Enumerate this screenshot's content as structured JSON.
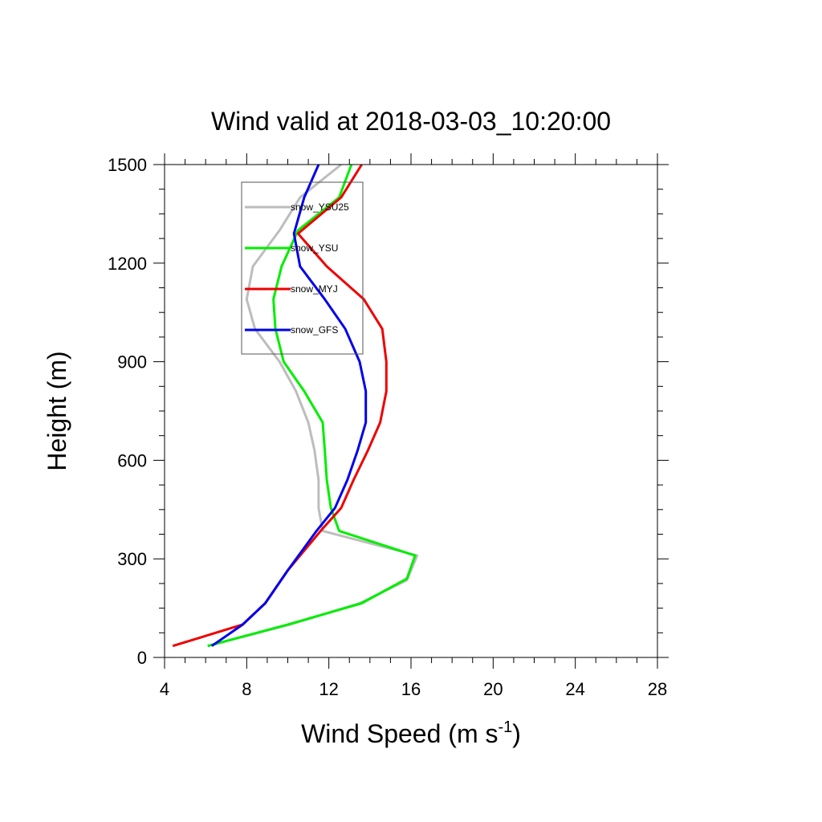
{
  "chart_data": {
    "type": "line",
    "title": "Wind valid at 2018-03-03_10:20:00",
    "xlabel_text": "Wind Speed (m s",
    "xlabel_sup": "-1",
    "xlabel_close": ")",
    "ylabel": "Height (m)",
    "xlim": [
      4,
      28
    ],
    "ylim": [
      0,
      1500
    ],
    "xticks": [
      4,
      8,
      12,
      16,
      20,
      24,
      28
    ],
    "yticks": [
      0,
      300,
      600,
      900,
      1200,
      1500
    ],
    "grid": false,
    "legend_position": "top-left",
    "series": [
      {
        "name": "snow_YSU25",
        "color": "#bdbdbd",
        "points": [
          [
            6.1,
            35
          ],
          [
            10.1,
            100
          ],
          [
            13.5,
            165
          ],
          [
            15.8,
            235
          ],
          [
            16.3,
            310
          ],
          [
            11.7,
            385
          ],
          [
            11.5,
            455
          ],
          [
            11.5,
            540
          ],
          [
            11.3,
            630
          ],
          [
            11.0,
            715
          ],
          [
            10.4,
            810
          ],
          [
            9.6,
            900
          ],
          [
            8.4,
            1000
          ],
          [
            8.0,
            1090
          ],
          [
            8.3,
            1190
          ],
          [
            9.6,
            1300
          ],
          [
            10.6,
            1400
          ],
          [
            12.6,
            1500
          ]
        ]
      },
      {
        "name": "snow_YSU",
        "color": "#00ee00",
        "points": [
          [
            6.1,
            35
          ],
          [
            10.0,
            100
          ],
          [
            13.6,
            165
          ],
          [
            15.8,
            240
          ],
          [
            16.2,
            310
          ],
          [
            12.5,
            385
          ],
          [
            12.1,
            455
          ],
          [
            11.9,
            540
          ],
          [
            11.8,
            630
          ],
          [
            11.7,
            715
          ],
          [
            10.8,
            810
          ],
          [
            9.8,
            900
          ],
          [
            9.4,
            1000
          ],
          [
            9.3,
            1090
          ],
          [
            9.7,
            1190
          ],
          [
            10.5,
            1300
          ],
          [
            12.5,
            1400
          ],
          [
            13.1,
            1500
          ]
        ]
      },
      {
        "name": "snow_MYJ",
        "color": "#ee0000",
        "points": [
          [
            4.4,
            35
          ],
          [
            7.8,
            100
          ],
          [
            8.9,
            165
          ],
          [
            10.0,
            265
          ],
          [
            11.6,
            385
          ],
          [
            12.6,
            455
          ],
          [
            13.2,
            540
          ],
          [
            13.9,
            630
          ],
          [
            14.5,
            715
          ],
          [
            14.8,
            810
          ],
          [
            14.8,
            900
          ],
          [
            14.6,
            1000
          ],
          [
            13.7,
            1090
          ],
          [
            11.9,
            1190
          ],
          [
            10.5,
            1290
          ],
          [
            12.6,
            1400
          ],
          [
            13.6,
            1500
          ]
        ]
      },
      {
        "name": "snow_GFS",
        "color": "#0000ee",
        "points": [
          [
            6.3,
            35
          ],
          [
            7.8,
            100
          ],
          [
            8.9,
            165
          ],
          [
            10.0,
            265
          ],
          [
            11.4,
            385
          ],
          [
            12.3,
            455
          ],
          [
            12.9,
            540
          ],
          [
            13.4,
            630
          ],
          [
            13.8,
            715
          ],
          [
            13.8,
            810
          ],
          [
            13.5,
            900
          ],
          [
            12.8,
            1000
          ],
          [
            11.8,
            1090
          ],
          [
            10.6,
            1190
          ],
          [
            10.3,
            1290
          ],
          [
            10.8,
            1400
          ],
          [
            11.5,
            1500
          ]
        ]
      }
    ]
  }
}
